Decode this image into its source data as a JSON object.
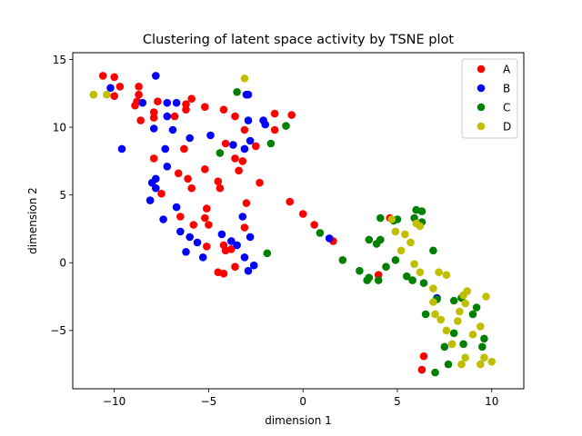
{
  "chart_data": {
    "type": "scatter",
    "title": "Clustering of latent space activity by TSNE plot",
    "xlabel": "dimension 1",
    "ylabel": "dimension 2",
    "xlim": [
      -12.2,
      11.7
    ],
    "ylim": [
      -9.3,
      15.5
    ],
    "xticks": [
      -10,
      -5,
      0,
      5,
      10
    ],
    "yticks": [
      -5,
      0,
      5,
      10,
      15
    ],
    "grid": false,
    "legend_position": "top-right",
    "series": [
      {
        "name": "A",
        "color": "#ff0000",
        "points": [
          [
            -10.6,
            13.8
          ],
          [
            -10.0,
            13.7
          ],
          [
            -9.7,
            13.0
          ],
          [
            -10.0,
            12.3
          ],
          [
            -8.7,
            13.0
          ],
          [
            -8.7,
            12.4
          ],
          [
            -8.8,
            11.9
          ],
          [
            -8.9,
            11.6
          ],
          [
            -8.6,
            10.5
          ],
          [
            -7.9,
            11.1
          ],
          [
            -7.9,
            10.7
          ],
          [
            -7.7,
            11.9
          ],
          [
            -6.8,
            10.8
          ],
          [
            -6.2,
            11.7
          ],
          [
            -6.2,
            11.3
          ],
          [
            -5.9,
            12.1
          ],
          [
            -5.2,
            11.5
          ],
          [
            -4.2,
            11.3
          ],
          [
            -3.6,
            10.8
          ],
          [
            -3.1,
            9.8
          ],
          [
            -2.5,
            8.6
          ],
          [
            -1.5,
            11.0
          ],
          [
            -1.5,
            9.8
          ],
          [
            -0.6,
            10.9
          ],
          [
            -4.1,
            8.8
          ],
          [
            -3.6,
            7.7
          ],
          [
            -3.2,
            7.5
          ],
          [
            -3.4,
            6.8
          ],
          [
            -6.3,
            8.4
          ],
          [
            -7.9,
            7.7
          ],
          [
            -6.6,
            6.6
          ],
          [
            -6.1,
            6.2
          ],
          [
            -5.9,
            5.5
          ],
          [
            -5.2,
            6.9
          ],
          [
            -4.5,
            6.0
          ],
          [
            -4.4,
            5.5
          ],
          [
            -2.3,
            5.9
          ],
          [
            -7.5,
            5.1
          ],
          [
            -3.0,
            4.4
          ],
          [
            -6.5,
            3.4
          ],
          [
            -5.1,
            4.0
          ],
          [
            -5.2,
            3.3
          ],
          [
            -5.8,
            2.8
          ],
          [
            -5.0,
            2.8
          ],
          [
            -3.1,
            2.6
          ],
          [
            -4.2,
            1.3
          ],
          [
            -4.1,
            0.9
          ],
          [
            -3.8,
            1.0
          ],
          [
            -5.1,
            1.2
          ],
          [
            -3.6,
            -0.3
          ],
          [
            -4.5,
            -0.7
          ],
          [
            -4.2,
            -0.8
          ],
          [
            -0.7,
            4.5
          ],
          [
            0.0,
            3.6
          ],
          [
            0.6,
            2.8
          ],
          [
            1.6,
            1.6
          ],
          [
            4.0,
            -0.9
          ],
          [
            4.6,
            3.3
          ],
          [
            6.4,
            -6.9
          ],
          [
            6.3,
            -7.9
          ]
        ]
      },
      {
        "name": "B",
        "color": "#0000ff",
        "points": [
          [
            -10.2,
            12.9
          ],
          [
            -8.5,
            11.8
          ],
          [
            -7.8,
            13.8
          ],
          [
            -7.2,
            11.8
          ],
          [
            -6.7,
            11.8
          ],
          [
            -7.2,
            10.8
          ],
          [
            -7.9,
            9.9
          ],
          [
            -6.9,
            9.8
          ],
          [
            -9.6,
            8.4
          ],
          [
            -7.3,
            8.4
          ],
          [
            -6.0,
            9.2
          ],
          [
            -4.9,
            9.4
          ],
          [
            -2.9,
            12.4
          ],
          [
            -3.0,
            12.4
          ],
          [
            -2.1,
            10.5
          ],
          [
            -2.0,
            10.2
          ],
          [
            -2.9,
            10.5
          ],
          [
            -2.8,
            9.0
          ],
          [
            -3.1,
            8.4
          ],
          [
            -3.7,
            8.7
          ],
          [
            -7.2,
            7.1
          ],
          [
            -8.0,
            5.9
          ],
          [
            -7.8,
            6.2
          ],
          [
            -7.8,
            5.5
          ],
          [
            -6.7,
            4.1
          ],
          [
            -8.1,
            4.6
          ],
          [
            -7.4,
            3.2
          ],
          [
            -6.5,
            2.3
          ],
          [
            -6.0,
            1.9
          ],
          [
            -5.6,
            1.5
          ],
          [
            -6.2,
            0.8
          ],
          [
            -5.3,
            0.4
          ],
          [
            -4.3,
            2.1
          ],
          [
            -3.8,
            1.6
          ],
          [
            -3.2,
            3.4
          ],
          [
            -3.5,
            1.3
          ],
          [
            -2.8,
            1.9
          ],
          [
            -3.1,
            0.4
          ],
          [
            -2.6,
            -0.2
          ],
          [
            -2.9,
            -0.6
          ],
          [
            1.4,
            1.8
          ],
          [
            7.1,
            -2.6
          ]
        ]
      },
      {
        "name": "C",
        "color": "#008000",
        "points": [
          [
            -3.5,
            12.6
          ],
          [
            -4.4,
            8.1
          ],
          [
            -0.9,
            10.1
          ],
          [
            -1.7,
            8.8
          ],
          [
            -1.9,
            0.7
          ],
          [
            0.9,
            2.2
          ],
          [
            2.1,
            0.2
          ],
          [
            3.0,
            -0.6
          ],
          [
            3.4,
            -1.3
          ],
          [
            3.5,
            -1.1
          ],
          [
            3.5,
            1.7
          ],
          [
            3.9,
            1.4
          ],
          [
            4.1,
            1.7
          ],
          [
            4.0,
            -1.3
          ],
          [
            4.1,
            3.3
          ],
          [
            4.4,
            -0.3
          ],
          [
            4.8,
            3.1
          ],
          [
            4.9,
            0.2
          ],
          [
            5.0,
            3.2
          ],
          [
            5.5,
            -1.0
          ],
          [
            5.8,
            -1.3
          ],
          [
            5.9,
            3.3
          ],
          [
            6.0,
            3.9
          ],
          [
            6.3,
            3.8
          ],
          [
            6.3,
            3.0
          ],
          [
            6.4,
            -1.5
          ],
          [
            6.5,
            -3.8
          ],
          [
            6.9,
            0.9
          ],
          [
            7.0,
            -8.1
          ],
          [
            7.1,
            -2.7
          ],
          [
            7.5,
            -6.2
          ],
          [
            7.7,
            -7.5
          ],
          [
            8.0,
            -2.8
          ],
          [
            8.0,
            -5.2
          ],
          [
            8.4,
            -2.6
          ],
          [
            8.5,
            -6.0
          ],
          [
            9.0,
            -3.8
          ],
          [
            9.2,
            -3.3
          ],
          [
            9.5,
            -6.2
          ],
          [
            9.6,
            -5.6
          ]
        ]
      },
      {
        "name": "D",
        "color": "#bfbf00",
        "points": [
          [
            -11.1,
            12.4
          ],
          [
            -10.4,
            12.4
          ],
          [
            -3.1,
            13.6
          ],
          [
            4.7,
            3.2
          ],
          [
            4.9,
            2.3
          ],
          [
            5.2,
            0.9
          ],
          [
            5.4,
            2.1
          ],
          [
            5.7,
            1.5
          ],
          [
            6.0,
            2.9
          ],
          [
            6.2,
            2.7
          ],
          [
            5.9,
            -0.1
          ],
          [
            6.2,
            -0.7
          ],
          [
            6.9,
            -1.9
          ],
          [
            6.9,
            -2.9
          ],
          [
            7.0,
            -3.8
          ],
          [
            7.3,
            -4.2
          ],
          [
            7.2,
            -0.7
          ],
          [
            7.6,
            -0.9
          ],
          [
            7.6,
            -5.0
          ],
          [
            7.9,
            -6.0
          ],
          [
            8.2,
            -4.3
          ],
          [
            8.3,
            -3.6
          ],
          [
            8.5,
            -2.4
          ],
          [
            8.6,
            -3.0
          ],
          [
            8.7,
            -2.1
          ],
          [
            8.6,
            -7.0
          ],
          [
            8.4,
            -7.5
          ],
          [
            9.0,
            -5.3
          ],
          [
            9.4,
            -4.7
          ],
          [
            9.7,
            -2.5
          ],
          [
            9.6,
            -7.0
          ],
          [
            9.4,
            -7.5
          ],
          [
            10.0,
            -7.3
          ]
        ]
      }
    ]
  }
}
